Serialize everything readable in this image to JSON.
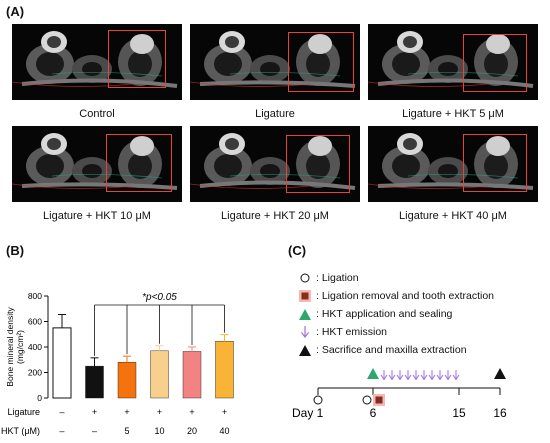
{
  "panel_a": {
    "label": "(A)",
    "images": [
      {
        "caption": "Control"
      },
      {
        "caption": "Ligature"
      },
      {
        "caption": "Ligature + HKT 5 μM"
      },
      {
        "caption": "Ligature + HKT 10 μM"
      },
      {
        "caption": "Ligature + HKT 20 μM"
      },
      {
        "caption": "Ligature + HKT 40 μM"
      }
    ]
  },
  "panel_b": {
    "label": "(B)",
    "significance": "*p<0.05",
    "row_labels": [
      "Ligature",
      "HKT (μM)"
    ],
    "chart_data": {
      "type": "bar",
      "ylabel": "Bone mineral density\n(mg/cm²)",
      "ylim": [
        0,
        800
      ],
      "yticks": [
        0,
        200,
        400,
        600,
        800
      ],
      "categories": [
        "Control",
        "Ligature",
        "HKT 5",
        "HKT 10",
        "HKT 20",
        "HKT 40"
      ],
      "ligature": [
        "–",
        "+",
        "+",
        "+",
        "+",
        "+"
      ],
      "hkt": [
        "–",
        "–",
        "5",
        "10",
        "20",
        "40"
      ],
      "values": [
        550,
        250,
        280,
        370,
        365,
        445
      ],
      "errors": [
        105,
        65,
        48,
        40,
        35,
        52
      ],
      "colors": [
        "#ffffff",
        "#111111",
        "#f5730f",
        "#f9cf8e",
        "#f38383",
        "#f9b437"
      ]
    }
  },
  "panel_c": {
    "label": "(C)",
    "legend": [
      {
        "icon": "circle-icon",
        "text": ": Ligation"
      },
      {
        "icon": "square-icon",
        "text": ": Ligation removal and tooth extraction"
      },
      {
        "icon": "green-triangle-icon",
        "text": ": HKT application and sealing"
      },
      {
        "icon": "arrow-icon",
        "text": ": HKT emission"
      },
      {
        "icon": "black-triangle-icon",
        "text": ": Sacrifice and maxilla extraction"
      }
    ],
    "timeline": {
      "axis_label": "Day",
      "days": [
        "1",
        "6",
        "15",
        "16"
      ]
    },
    "colors": {
      "square": "#8a2a1e",
      "square_bg": "#f2b8b3",
      "green": "#2fa66b",
      "arrow": "#a36fd9"
    }
  }
}
